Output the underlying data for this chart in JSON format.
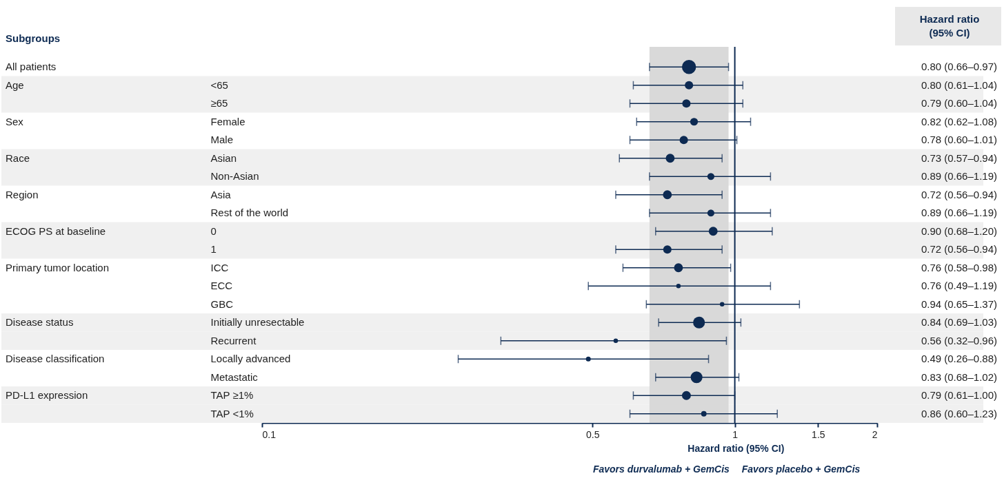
{
  "chart_data": {
    "type": "scatter",
    "y2label": "Hazard ratio\n(95% CI)",
    "xlabel": "Hazard ratio (95% CI)",
    "categories": [
      null,
      "<65",
      "≥65",
      "Female",
      "Male",
      "Asian",
      "Non-Asian",
      "Asia",
      "Rest of the world",
      "0",
      "1",
      "ICC",
      "ECC",
      "GBC",
      "Initially unresectable",
      "Recurrent",
      "Locally advanced",
      "Metastatic",
      "TAP ≥1%",
      "TAP <1%"
    ],
    "series": [
      {
        "color": "#0d2a52",
        "values": [
          0.8,
          0.8,
          0.79,
          0.82,
          0.78,
          0.73,
          0.89,
          0.72,
          0.89,
          0.9,
          0.72,
          0.76,
          0.76,
          0.94,
          0.84,
          0.56,
          0.49,
          0.83,
          0.79,
          0.86
        ],
        "errors": [
          [
            0.66,
            0.97
          ],
          [
            0.61,
            1.04
          ],
          [
            0.6,
            1.04
          ],
          [
            0.62,
            1.08
          ],
          [
            0.6,
            1.01
          ],
          [
            0.57,
            0.94
          ],
          [
            0.66,
            1.19
          ],
          [
            0.56,
            0.94
          ],
          [
            0.66,
            1.19
          ],
          [
            0.68,
            1.2
          ],
          [
            0.56,
            0.94
          ],
          [
            0.58,
            0.98
          ],
          [
            0.49,
            1.19
          ],
          [
            0.65,
            1.37
          ],
          [
            0.69,
            1.03
          ],
          [
            0.32,
            0.96
          ],
          [
            0.26,
            0.88
          ],
          [
            0.68,
            1.02
          ],
          [
            0.61,
            1.0
          ],
          [
            0.6,
            1.23
          ]
        ],
        "sizes": [
          1,
          0.35,
          0.35,
          0.3,
          0.35,
          0.4,
          0.25,
          0.4,
          0.25,
          0.4,
          0.35,
          0.4,
          0.1,
          0.1,
          0.7,
          0.1,
          0.12,
          0.7,
          0.4,
          0.15
        ],
        "value_labels": [
          "0.80 (0.66–0.97)",
          "0.80 (0.61–1.04)",
          "0.79 (0.60–1.04)",
          "0.82 (0.62–1.08)",
          "0.78 (0.60–1.01)",
          "0.73 (0.57–0.94)",
          "0.89 (0.66–1.19)",
          "0.72 (0.56–0.94)",
          "0.89 (0.66–1.19)",
          "0.90 (0.68–1.20)",
          "0.72 (0.56–0.94)",
          "0.76 (0.58–0.98)",
          "0.76 (0.49–1.19)",
          "0.94 (0.65–1.37)",
          "0.84 (0.69–1.03)",
          "0.56 (0.32–0.96)",
          "0.49 (0.26–0.88)",
          "0.83 (0.68–1.02)",
          "0.79 (0.61–1.00)",
          "0.86 (0.60–1.23)"
        ]
      }
    ],
    "orientation": "horizontal",
    "marker": "circle",
    "log": "x",
    "xlim": [
      0.1,
      2
    ],
    "xticks": [
      0.1,
      0.5,
      1,
      1.5,
      2
    ],
    "ref_lines": [
      {
        "axis": "x",
        "value": 1,
        "color": "#0d2a52"
      }
    ],
    "bands": [
      {
        "axis": "x",
        "from": 0.66,
        "to": 0.97,
        "color": "#d9d9d9"
      },
      {
        "axis": "y",
        "from": "<65",
        "to": "≥65",
        "color": "#f0f0f0"
      },
      {
        "axis": "y",
        "from": "Asian",
        "to": "Non-Asian",
        "color": "#f0f0f0"
      },
      {
        "axis": "y",
        "from": "0",
        "to": "1",
        "color": "#f0f0f0"
      },
      {
        "axis": "y",
        "from": "Initially unresectable",
        "to": "Recurrent",
        "color": "#f0f0f0"
      },
      {
        "axis": "y",
        "from": "TAP ≥1%",
        "to": "TAP <1%",
        "color": "#f0f0f0"
      }
    ],
    "y2_categories": [
      "All patients",
      "Age",
      null,
      "Sex",
      null,
      "Race",
      null,
      "Region",
      null,
      "ECOG PS at baseline",
      null,
      "Primary tumor location",
      null,
      null,
      "Disease status",
      null,
      "Disease classification",
      null,
      "PD-L1 expression",
      null
    ],
    "annotations": [
      "Subgroups",
      "Favors durvalumab + GemCis",
      "Favors placebo + GemCis"
    ]
  }
}
